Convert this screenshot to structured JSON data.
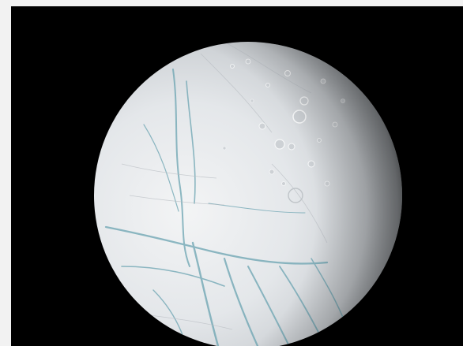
{
  "image": {
    "alt": "",
    "background_color": "#000000",
    "page_color": "#f2f2f2",
    "surface_color": "#e7ebee",
    "fracture_color": "#5f98a6",
    "subject": "moon-icon"
  }
}
